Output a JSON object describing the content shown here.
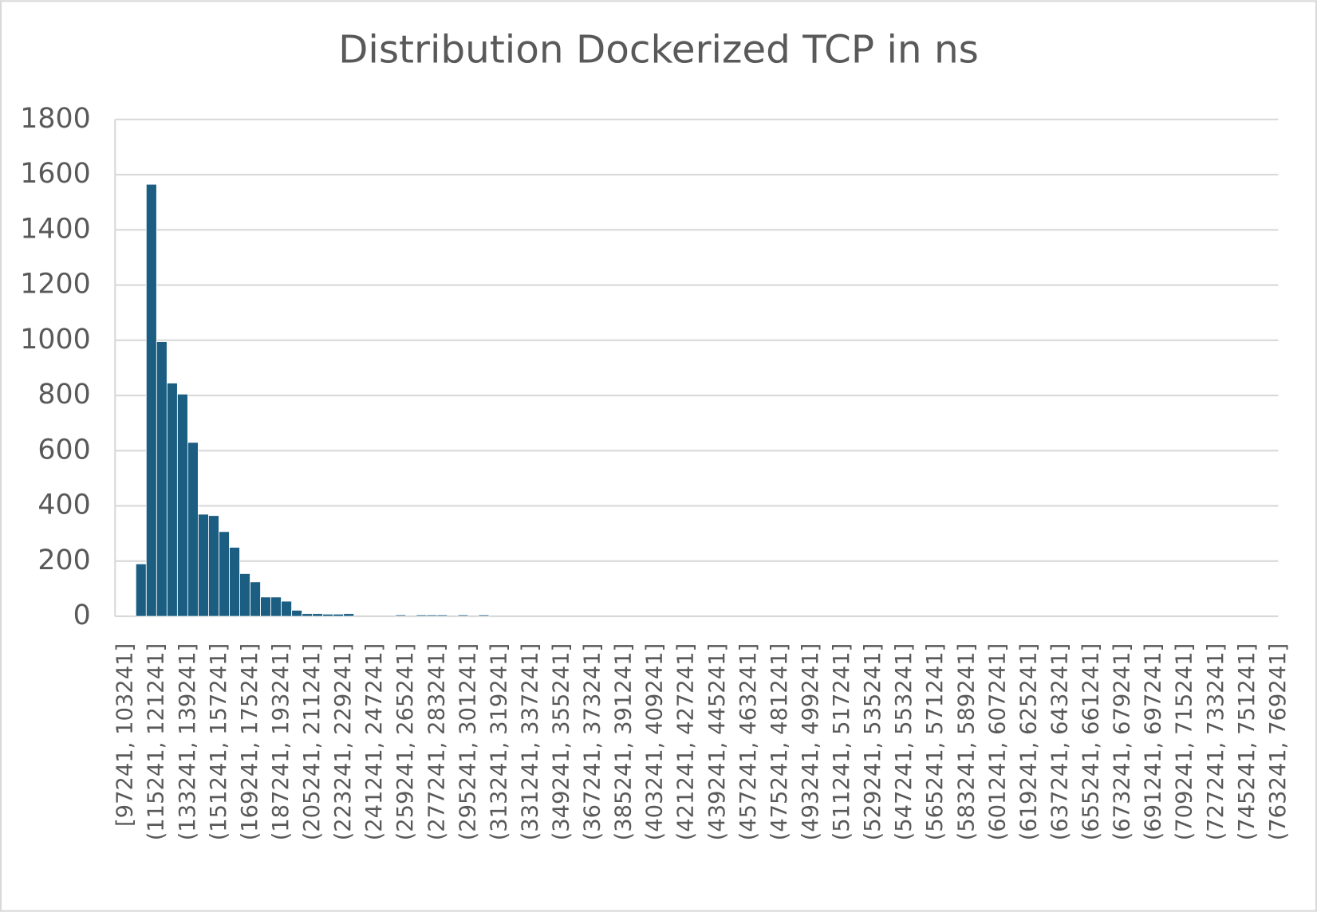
{
  "chart_data": {
    "type": "bar",
    "title": "Distribution Dockerized TCP in ns",
    "categories": [
      "[97241, 103241]",
      null,
      null,
      "(115241, 121241]",
      null,
      null,
      "(133241, 139241]",
      null,
      null,
      "(151241, 157241]",
      null,
      null,
      "(169241, 175241]",
      null,
      null,
      "(187241, 193241]",
      null,
      null,
      "(205241, 211241]",
      null,
      null,
      "(223241, 229241]",
      null,
      null,
      "(241241, 247241]",
      null,
      null,
      "(259241, 265241]",
      null,
      null,
      "(277241, 283241]",
      null,
      null,
      "(295241, 301241]",
      null,
      null,
      "(313241, 319241]",
      null,
      null,
      "(331241, 337241]",
      null,
      null,
      "(349241, 355241]",
      null,
      null,
      "(367241, 373241]",
      null,
      null,
      "(385241, 391241]",
      null,
      null,
      "(403241, 409241]",
      null,
      null,
      "(421241, 427241]",
      null,
      null,
      "(439241, 445241]",
      null,
      null,
      "(457241, 463241]",
      null,
      null,
      "(475241, 481241]",
      null,
      null,
      "(493241, 499241]",
      null,
      null,
      "(511241, 517241]",
      null,
      null,
      "(529241, 535241]",
      null,
      null,
      "(547241, 553241]",
      null,
      null,
      "(565241, 571241]",
      null,
      null,
      "(583241, 589241]",
      null,
      null,
      "(601241, 607241]",
      null,
      null,
      "(619241, 625241]",
      null,
      null,
      "(637241, 643241]",
      null,
      null,
      "(655241, 661241]",
      null,
      null,
      "(673241, 679241]",
      null,
      null,
      "(691241, 697241]",
      null,
      null,
      "(709241, 715241]",
      null,
      null,
      "(727241, 733241]",
      null,
      null,
      "(745241, 751241]",
      null,
      null,
      "(763241, 769241]"
    ],
    "values": [
      0,
      0,
      190,
      1565,
      995,
      845,
      805,
      630,
      370,
      365,
      307,
      250,
      155,
      125,
      70,
      70,
      55,
      22,
      10,
      10,
      8,
      8,
      10,
      0,
      0,
      0,
      0,
      5,
      0,
      5,
      5,
      5,
      0,
      5,
      0,
      5,
      0,
      0,
      0,
      0,
      0,
      0,
      0,
      0,
      0,
      0,
      0,
      0,
      0,
      0,
      0,
      0,
      0,
      0,
      0,
      0,
      0,
      0,
      0,
      0,
      0,
      0,
      0,
      0,
      0,
      0,
      0,
      0,
      0,
      0,
      0,
      0,
      0,
      0,
      0,
      0,
      0,
      0,
      0,
      0,
      0,
      0,
      0,
      0,
      0,
      0,
      0,
      0,
      0,
      0,
      0,
      0,
      0,
      0,
      0,
      0,
      0,
      0,
      0,
      0,
      0,
      0,
      0,
      0,
      0,
      0,
      0,
      0,
      0,
      0,
      0,
      0
    ],
    "color": "#1b5e82",
    "ylim": [
      0,
      1800
    ],
    "yticks": [
      0,
      200,
      400,
      600,
      800,
      1000,
      1200,
      1400,
      1600,
      1800
    ],
    "grid": true
  }
}
